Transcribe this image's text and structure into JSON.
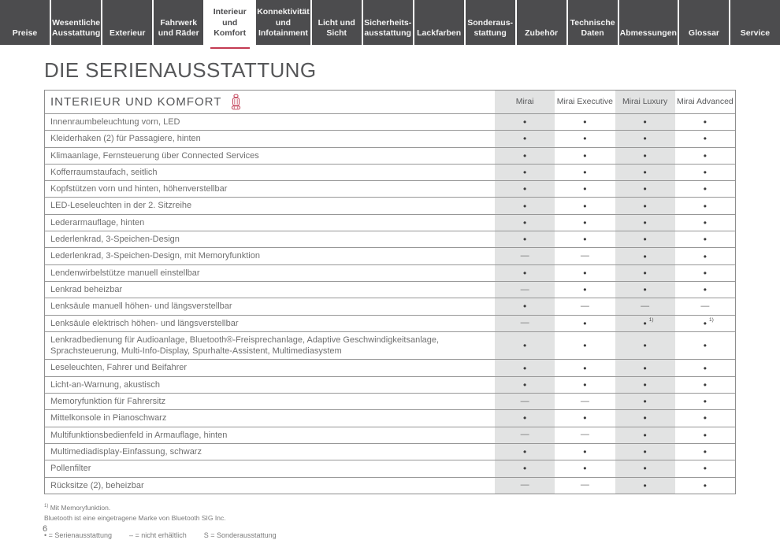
{
  "accent_color": "#c43a52",
  "tab_dark_color": "#4c4c4e",
  "shade_color": "#e2e3e3",
  "tabs": [
    {
      "label": "Preise",
      "active": false
    },
    {
      "label": "Wesentliche Ausstattung",
      "active": false
    },
    {
      "label": "Exterieur",
      "active": false
    },
    {
      "label": "Fahrwerk und Räder",
      "active": false
    },
    {
      "label": "Interieur und Komfort",
      "active": true
    },
    {
      "label": "Konnektivität und Infotainment",
      "active": false
    },
    {
      "label": "Licht und Sicht",
      "active": false
    },
    {
      "label": "Sicherheits­ausstattung",
      "active": false
    },
    {
      "label": "Lackfarben",
      "active": false
    },
    {
      "label": "Sonderaus­stattung",
      "active": false
    },
    {
      "label": "Zubehör",
      "active": false
    },
    {
      "label": "Technische Daten",
      "active": false
    },
    {
      "label": "Abmessungen",
      "active": false
    },
    {
      "label": "Glossar",
      "active": false
    },
    {
      "label": "Service",
      "active": false
    }
  ],
  "page": {
    "title": "DIE SERIENAUSSTATTUNG",
    "page_number": "6"
  },
  "table": {
    "section_title": "INTERIEUR UND KOMFORT",
    "section_icon": "car-seat-icon",
    "columns": [
      "Mirai",
      "Mirai Executive",
      "Mirai Luxury",
      "Mirai Advanced"
    ],
    "shaded_column_indexes": [
      0,
      2
    ],
    "symbols": {
      "standard": "•",
      "not_available": "—"
    },
    "rows": [
      {
        "label": "Innenraumbeleuchtung vorn, LED",
        "values": [
          "•",
          "•",
          "•",
          "•"
        ]
      },
      {
        "label": "Kleiderhaken (2) für Passagiere, hinten",
        "values": [
          "•",
          "•",
          "•",
          "•"
        ]
      },
      {
        "label": "Klimaanlage, Fernsteuerung über Connected Services",
        "values": [
          "•",
          "•",
          "•",
          "•"
        ]
      },
      {
        "label": "Kofferraumstaufach, seitlich",
        "values": [
          "•",
          "•",
          "•",
          "•"
        ]
      },
      {
        "label": "Kopfstützen vorn und hinten, höhenverstellbar",
        "values": [
          "•",
          "•",
          "•",
          "•"
        ]
      },
      {
        "label": "LED-Leseleuchten in der 2. Sitzreihe",
        "values": [
          "•",
          "•",
          "•",
          "•"
        ]
      },
      {
        "label": "Lederarmauflage, hinten",
        "values": [
          "•",
          "•",
          "•",
          "•"
        ]
      },
      {
        "label": "Lederlenkrad, 3-Speichen-Design",
        "values": [
          "•",
          "•",
          "•",
          "•"
        ]
      },
      {
        "label": "Lederlenkrad, 3-Speichen-Design, mit Memoryfunktion",
        "values": [
          "—",
          "—",
          "•",
          "•"
        ]
      },
      {
        "label": "Lendenwirbelstütze manuell einstellbar",
        "values": [
          "•",
          "•",
          "•",
          "•"
        ]
      },
      {
        "label": "Lenkrad beheizbar",
        "values": [
          "—",
          "•",
          "•",
          "•"
        ]
      },
      {
        "label": "Lenksäule manuell höhen- und längsverstellbar",
        "values": [
          "•",
          "—",
          "—",
          "—"
        ]
      },
      {
        "label": "Lenksäule elektrisch höhen- und längsverstellbar",
        "values": [
          "—",
          "•",
          {
            "symbol": "•",
            "footnote": "1)"
          },
          {
            "symbol": "•",
            "footnote": "1)"
          }
        ]
      },
      {
        "label": "Lenkradbedienung für Audioanlage, Bluetooth®-Freisprechanlage, Adaptive Geschwindigkeitsanlage, Sprachsteuerung, Multi-Info-Display, Spurhalte-Assistent, Multimediasystem",
        "values": [
          "•",
          "•",
          "•",
          "•"
        ]
      },
      {
        "label": "Leseleuchten, Fahrer und Beifahrer",
        "values": [
          "•",
          "•",
          "•",
          "•"
        ]
      },
      {
        "label": "Licht-an-Warnung, akustisch",
        "values": [
          "•",
          "•",
          "•",
          "•"
        ]
      },
      {
        "label": "Memoryfunktion für Fahrersitz",
        "values": [
          "—",
          "—",
          "•",
          "•"
        ]
      },
      {
        "label": "Mittelkonsole in Pianoschwarz",
        "values": [
          "•",
          "•",
          "•",
          "•"
        ]
      },
      {
        "label": "Multifunktionsbedienfeld in Armauflage, hinten",
        "values": [
          "—",
          "—",
          "•",
          "•"
        ]
      },
      {
        "label": "Multimediadisplay-Einfassung, schwarz",
        "values": [
          "•",
          "•",
          "•",
          "•"
        ]
      },
      {
        "label": "Pollenfilter",
        "values": [
          "•",
          "•",
          "•",
          "•"
        ]
      },
      {
        "label": "Rücksitze (2), beheizbar",
        "values": [
          "—",
          "—",
          "•",
          "•"
        ]
      }
    ]
  },
  "footnotes": [
    {
      "sup": "1)",
      "text": " Mit Memoryfunktion."
    },
    {
      "sup": "",
      "text": "Bluetooth ist eine eingetragene Marke von Bluetooth SIG Inc."
    }
  ],
  "legend_items": [
    "• = Serienausstattung",
    "– = nicht erhältlich",
    "S = Sonderausstattung"
  ]
}
